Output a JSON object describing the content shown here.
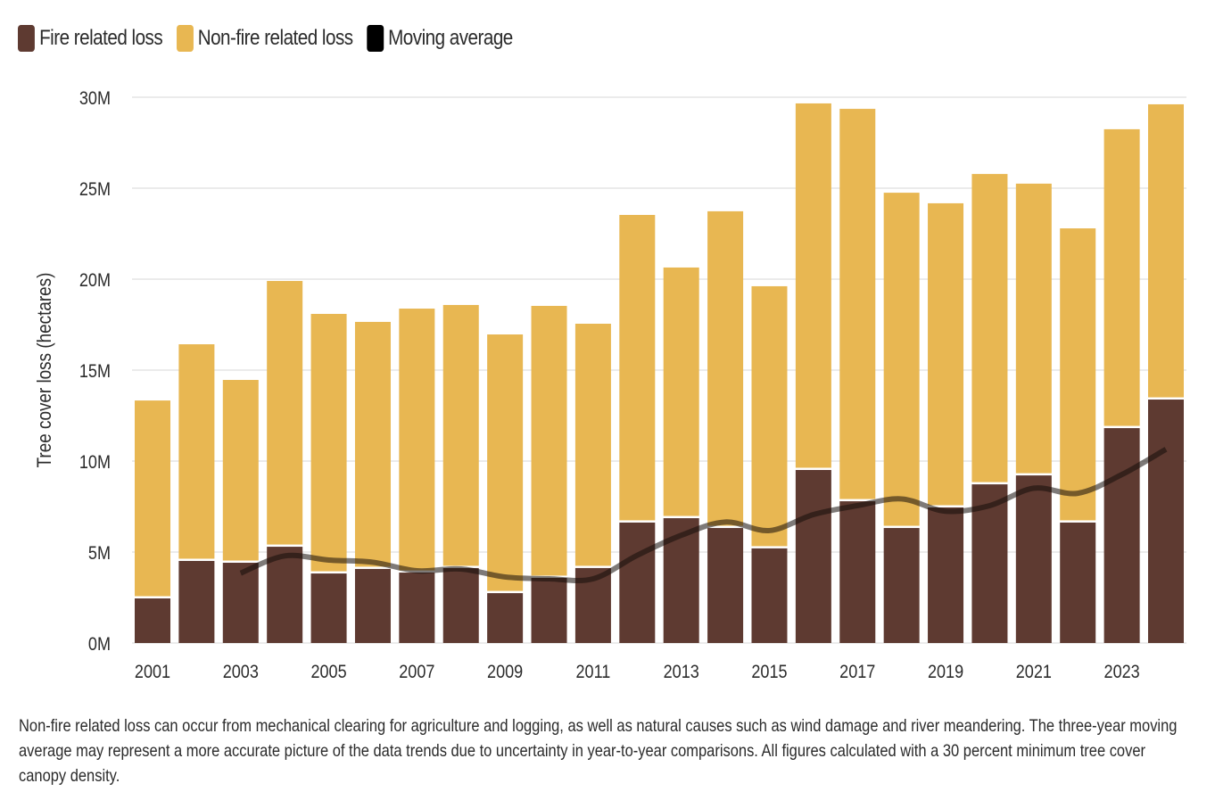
{
  "legend": [
    {
      "label": "Fire related loss",
      "color": "#5e3a31",
      "icon": "square-swatch"
    },
    {
      "label": "Non-fire related loss",
      "color": "#e8b752",
      "icon": "square-swatch"
    },
    {
      "label": "Moving average",
      "color": "#000000",
      "icon": "square-swatch"
    }
  ],
  "footnote": "Non-fire related loss can occur from mechanical clearing for agriculture and logging, as well as natural causes such as wind damage and river meandering. The three-year moving average may represent a more accurate picture of the data trends due to uncertainty in year-to-year comparisons. All figures calculated with a 30 percent minimum tree cover canopy density.",
  "chart_data": {
    "type": "bar",
    "stacked": true,
    "title": "",
    "xlabel": "",
    "ylabel": "Tree cover loss (hectares)",
    "ylim": [
      0,
      30000000
    ],
    "yticks": [
      0,
      5000000,
      10000000,
      15000000,
      20000000,
      25000000,
      30000000
    ],
    "ytick_labels": [
      "0M",
      "5M",
      "10M",
      "15M",
      "20M",
      "25M",
      "30M"
    ],
    "grid": true,
    "legend_position": "top-left",
    "categories": [
      "2001",
      "2002",
      "2003",
      "2004",
      "2005",
      "2006",
      "2007",
      "2008",
      "2009",
      "2010",
      "2011",
      "2012",
      "2013",
      "2014",
      "2015",
      "2016",
      "2017",
      "2018",
      "2019",
      "2020",
      "2021",
      "2022",
      "2023",
      "2024"
    ],
    "xtick_labels": [
      "2001",
      "2003",
      "2005",
      "2007",
      "2009",
      "2011",
      "2013",
      "2015",
      "2017",
      "2019",
      "2021",
      "2023"
    ],
    "series": [
      {
        "name": "Fire related loss",
        "color": "#5e3a31",
        "values": [
          2500000,
          4560000,
          4460000,
          5340000,
          3870000,
          4120000,
          3920000,
          4170000,
          2790000,
          3630000,
          4170000,
          6670000,
          6910000,
          6370000,
          5250000,
          9560000,
          7840000,
          6370000,
          7500000,
          8770000,
          9260000,
          6670000,
          11860000,
          13430000
        ]
      },
      {
        "name": "Non-fire related loss",
        "color": "#e8b752",
        "values": [
          10830000,
          11860000,
          10000000,
          14560000,
          14220000,
          13530000,
          14460000,
          14410000,
          14170000,
          14900000,
          13380000,
          16860000,
          13730000,
          17360000,
          14360000,
          20100000,
          21520000,
          18380000,
          16670000,
          17010000,
          15990000,
          16120000,
          16380000,
          16180000
        ]
      },
      {
        "name": "Moving average",
        "type": "line",
        "color": "#000000",
        "note": "three-year moving average of fire related loss",
        "x": [
          "2003",
          "2004",
          "2005",
          "2006",
          "2007",
          "2008",
          "2009",
          "2010",
          "2011",
          "2012",
          "2013",
          "2014",
          "2015",
          "2016",
          "2017",
          "2018",
          "2019",
          "2020",
          "2021",
          "2022",
          "2023",
          "2024"
        ],
        "values": [
          3840000,
          4790000,
          4560000,
          4440000,
          3970000,
          4070000,
          3630000,
          3530000,
          3530000,
          4820000,
          5920000,
          6650000,
          6180000,
          7060000,
          7550000,
          7920000,
          7240000,
          7550000,
          8510000,
          8230000,
          9260000,
          10650000
        ]
      }
    ]
  }
}
